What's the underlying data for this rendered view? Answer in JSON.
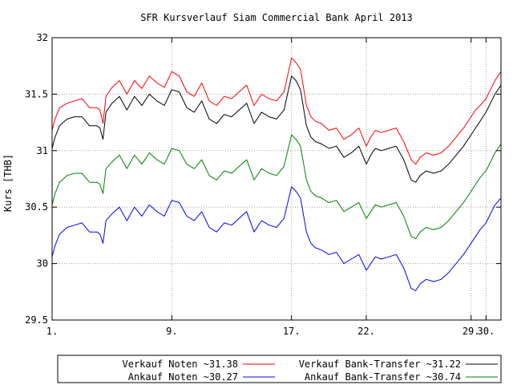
{
  "chart_data": {
    "type": "line",
    "title": "SFR Kursverlauf Siam Commercial Bank April 2013",
    "xlabel": "",
    "ylabel": "Kurs [THB]",
    "xlim": [
      1,
      31
    ],
    "ylim": [
      29.5,
      32
    ],
    "x_ticks": [
      {
        "x": 1,
        "label": "1."
      },
      {
        "x": 9,
        "label": "9."
      },
      {
        "x": 17,
        "label": "17."
      },
      {
        "x": 22,
        "label": "22."
      },
      {
        "x": 29,
        "label": "29."
      },
      {
        "x": 30,
        "label": "30."
      }
    ],
    "y_ticks": [
      {
        "y": 29.5,
        "label": "29.5"
      },
      {
        "y": 30,
        "label": "30"
      },
      {
        "y": 30.5,
        "label": "30.5"
      },
      {
        "y": 31,
        "label": "31"
      },
      {
        "y": 31.5,
        "label": "31.5"
      },
      {
        "y": 32,
        "label": "32"
      }
    ],
    "grid": true,
    "legend_position": "bottom",
    "series": [
      {
        "name": "Verkauf Noten",
        "legend_label": "Verkauf Noten ~31.38",
        "color": "#ff0000",
        "x": [
          1.0,
          1.2,
          1.5,
          2.0,
          2.5,
          3.0,
          3.5,
          4.0,
          4.2,
          4.4,
          4.6,
          5.0,
          5.5,
          6.0,
          6.5,
          7.0,
          7.5,
          8.0,
          8.5,
          9.0,
          9.5,
          10.0,
          10.5,
          11.0,
          11.5,
          12.0,
          12.5,
          13.0,
          13.5,
          14.0,
          14.5,
          15.0,
          15.5,
          16.0,
          16.5,
          17.0,
          17.3,
          17.6,
          18.0,
          18.3,
          18.6,
          19.0,
          19.5,
          20.0,
          20.5,
          21.0,
          21.5,
          22.0,
          22.3,
          22.6,
          23.0,
          23.5,
          24.0,
          24.5,
          25.0,
          25.3,
          25.6,
          26.0,
          26.5,
          27.0,
          27.5,
          28.0,
          28.5,
          29.0,
          29.3,
          29.6,
          30.0,
          30.3,
          30.6,
          31.0
        ],
        "y": [
          31.18,
          31.28,
          31.38,
          31.42,
          31.44,
          31.46,
          31.38,
          31.38,
          31.36,
          31.24,
          31.48,
          31.56,
          31.62,
          31.5,
          31.62,
          31.55,
          31.66,
          31.6,
          31.56,
          31.7,
          31.66,
          31.52,
          31.48,
          31.6,
          31.44,
          31.4,
          31.48,
          31.46,
          31.52,
          31.58,
          31.4,
          31.5,
          31.46,
          31.44,
          31.52,
          31.82,
          31.78,
          31.72,
          31.4,
          31.3,
          31.26,
          31.24,
          31.18,
          31.2,
          31.1,
          31.14,
          31.2,
          31.04,
          31.12,
          31.18,
          31.16,
          31.18,
          31.2,
          31.08,
          30.92,
          30.88,
          30.94,
          30.98,
          30.96,
          30.98,
          31.04,
          31.12,
          31.2,
          31.3,
          31.36,
          31.4,
          31.46,
          31.54,
          31.62,
          31.7
        ]
      },
      {
        "name": "Verkauf Bank-Transfer",
        "legend_label": "Verkauf Bank-Transfer ~31.22",
        "color": "#000000",
        "x": [
          1.0,
          1.2,
          1.5,
          2.0,
          2.5,
          3.0,
          3.5,
          4.0,
          4.2,
          4.4,
          4.6,
          5.0,
          5.5,
          6.0,
          6.5,
          7.0,
          7.5,
          8.0,
          8.5,
          9.0,
          9.5,
          10.0,
          10.5,
          11.0,
          11.5,
          12.0,
          12.5,
          13.0,
          13.5,
          14.0,
          14.5,
          15.0,
          15.5,
          16.0,
          16.5,
          17.0,
          17.3,
          17.6,
          18.0,
          18.3,
          18.6,
          19.0,
          19.5,
          20.0,
          20.5,
          21.0,
          21.5,
          22.0,
          22.3,
          22.6,
          23.0,
          23.5,
          24.0,
          24.5,
          25.0,
          25.3,
          25.6,
          26.0,
          26.5,
          27.0,
          27.5,
          28.0,
          28.5,
          29.0,
          29.3,
          29.6,
          30.0,
          30.3,
          30.6,
          31.0
        ],
        "y": [
          31.02,
          31.12,
          31.22,
          31.28,
          31.3,
          31.3,
          31.22,
          31.22,
          31.2,
          31.1,
          31.34,
          31.42,
          31.48,
          31.36,
          31.48,
          31.4,
          31.5,
          31.44,
          31.4,
          31.54,
          31.52,
          31.38,
          31.34,
          31.44,
          31.28,
          31.24,
          31.32,
          31.3,
          31.36,
          31.42,
          31.24,
          31.34,
          31.3,
          31.28,
          31.36,
          31.66,
          31.62,
          31.54,
          31.22,
          31.12,
          31.08,
          31.06,
          31.02,
          31.04,
          30.94,
          30.98,
          31.04,
          30.88,
          30.96,
          31.02,
          31.0,
          31.02,
          31.04,
          30.92,
          30.74,
          30.72,
          30.78,
          30.82,
          30.8,
          30.82,
          30.88,
          30.96,
          31.04,
          31.14,
          31.2,
          31.26,
          31.34,
          31.42,
          31.5,
          31.58
        ]
      },
      {
        "name": "Ankauf Noten",
        "legend_label": "Ankauf Noten ~30.27",
        "color": "#0000ff",
        "x": [
          1.0,
          1.2,
          1.5,
          2.0,
          2.5,
          3.0,
          3.5,
          4.0,
          4.2,
          4.4,
          4.6,
          5.0,
          5.5,
          6.0,
          6.5,
          7.0,
          7.5,
          8.0,
          8.5,
          9.0,
          9.5,
          10.0,
          10.5,
          11.0,
          11.5,
          12.0,
          12.5,
          13.0,
          13.5,
          14.0,
          14.5,
          15.0,
          15.5,
          16.0,
          16.5,
          17.0,
          17.3,
          17.6,
          18.0,
          18.3,
          18.6,
          19.0,
          19.5,
          20.0,
          20.5,
          21.0,
          21.5,
          22.0,
          22.3,
          22.6,
          23.0,
          23.5,
          24.0,
          24.5,
          25.0,
          25.3,
          25.6,
          26.0,
          26.5,
          27.0,
          27.5,
          28.0,
          28.5,
          29.0,
          29.3,
          29.6,
          30.0,
          30.3,
          30.6,
          31.0
        ],
        "y": [
          30.06,
          30.16,
          30.26,
          30.32,
          30.34,
          30.36,
          30.28,
          30.28,
          30.26,
          30.18,
          30.38,
          30.44,
          30.5,
          30.38,
          30.5,
          30.42,
          30.52,
          30.46,
          30.42,
          30.56,
          30.54,
          30.42,
          30.38,
          30.46,
          30.32,
          30.28,
          30.36,
          30.34,
          30.4,
          30.46,
          30.28,
          30.38,
          30.34,
          30.32,
          30.4,
          30.68,
          30.64,
          30.58,
          30.28,
          30.18,
          30.14,
          30.12,
          30.08,
          30.1,
          30.0,
          30.04,
          30.08,
          29.94,
          30.0,
          30.06,
          30.04,
          30.06,
          30.08,
          29.96,
          29.78,
          29.76,
          29.82,
          29.86,
          29.84,
          29.86,
          29.92,
          30.0,
          30.08,
          30.18,
          30.24,
          30.3,
          30.36,
          30.44,
          30.52,
          30.58
        ]
      },
      {
        "name": "Ankauf Bank-Transfer",
        "legend_label": "Ankauf Bank-Transfer ~30.74",
        "color": "#008000",
        "x": [
          1.0,
          1.2,
          1.5,
          2.0,
          2.5,
          3.0,
          3.5,
          4.0,
          4.2,
          4.4,
          4.6,
          5.0,
          5.5,
          6.0,
          6.5,
          7.0,
          7.5,
          8.0,
          8.5,
          9.0,
          9.5,
          10.0,
          10.5,
          11.0,
          11.5,
          12.0,
          12.5,
          13.0,
          13.5,
          14.0,
          14.5,
          15.0,
          15.5,
          16.0,
          16.5,
          17.0,
          17.3,
          17.6,
          18.0,
          18.3,
          18.6,
          19.0,
          19.5,
          20.0,
          20.5,
          21.0,
          21.5,
          22.0,
          22.3,
          22.6,
          23.0,
          23.5,
          24.0,
          24.5,
          25.0,
          25.3,
          25.6,
          26.0,
          26.5,
          27.0,
          27.5,
          28.0,
          28.5,
          29.0,
          29.3,
          29.6,
          30.0,
          30.3,
          30.6,
          31.0
        ],
        "y": [
          30.52,
          30.62,
          30.72,
          30.78,
          30.8,
          30.8,
          30.72,
          30.72,
          30.7,
          30.62,
          30.84,
          30.9,
          30.96,
          30.84,
          30.96,
          30.88,
          30.98,
          30.92,
          30.88,
          31.02,
          31.0,
          30.88,
          30.84,
          30.92,
          30.78,
          30.74,
          30.82,
          30.8,
          30.86,
          30.92,
          30.74,
          30.84,
          30.8,
          30.78,
          30.86,
          31.14,
          31.1,
          31.04,
          30.74,
          30.64,
          30.6,
          30.58,
          30.54,
          30.56,
          30.46,
          30.5,
          30.54,
          30.4,
          30.46,
          30.52,
          30.5,
          30.52,
          30.54,
          30.42,
          30.24,
          30.22,
          30.28,
          30.32,
          30.3,
          30.32,
          30.38,
          30.46,
          30.54,
          30.64,
          30.7,
          30.76,
          30.82,
          30.9,
          30.98,
          31.06
        ]
      }
    ]
  }
}
